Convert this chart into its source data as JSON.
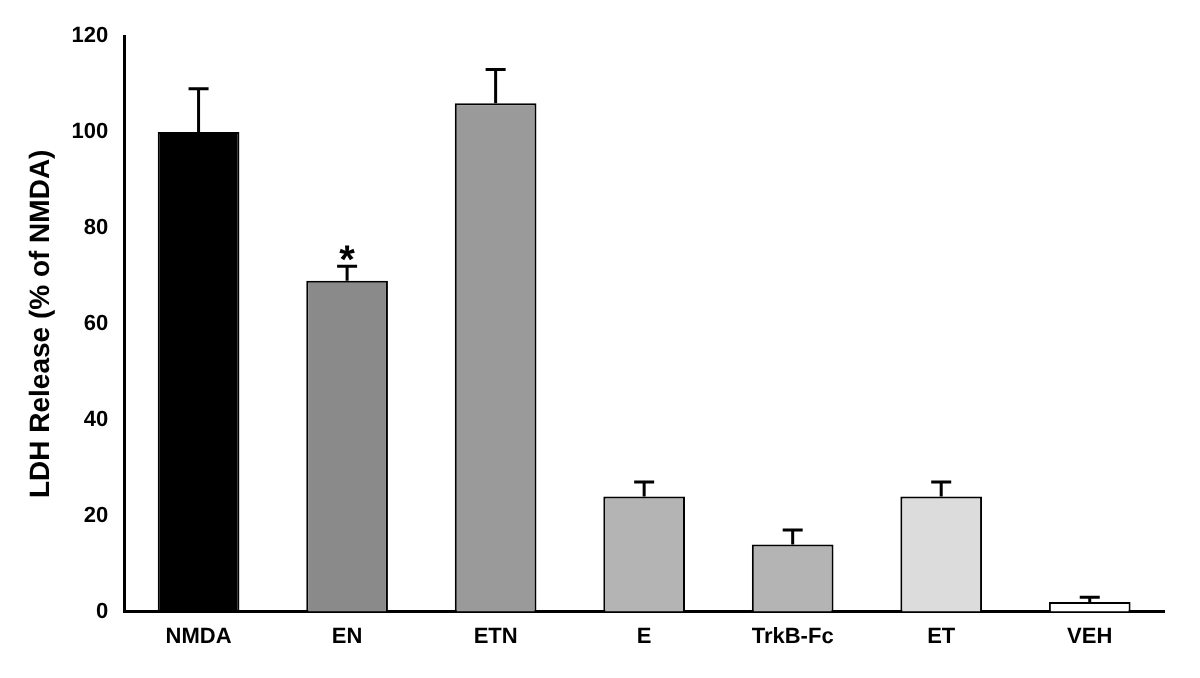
{
  "chart_data": {
    "type": "bar",
    "ylabel": "LDH Release (% of NMDA)",
    "categories": [
      "NMDA",
      "EN",
      "ETN",
      "E",
      "TrkB-Fc",
      "ET",
      "VEH"
    ],
    "values": [
      100,
      69,
      106,
      24,
      14,
      24,
      2
    ],
    "colors": [
      "#000000",
      "#8a8a8a",
      "#9a9a9a",
      "#b4b4b4",
      "#b4b4b4",
      "#dcdcdc",
      "#ffffff"
    ],
    "errors": [
      [
        100,
        109
      ],
      [
        69,
        72
      ],
      [
        106,
        113
      ],
      [
        24,
        27
      ],
      [
        14,
        17
      ],
      [
        24,
        27
      ],
      [
        2,
        3
      ]
    ],
    "annotations": [
      {
        "text": "*",
        "x": "EN",
        "y": 72
      }
    ],
    "ylim": [
      0,
      120
    ],
    "yticks": [
      0,
      20,
      40,
      60,
      80,
      100,
      120
    ],
    "grid": false,
    "legend": false
  }
}
